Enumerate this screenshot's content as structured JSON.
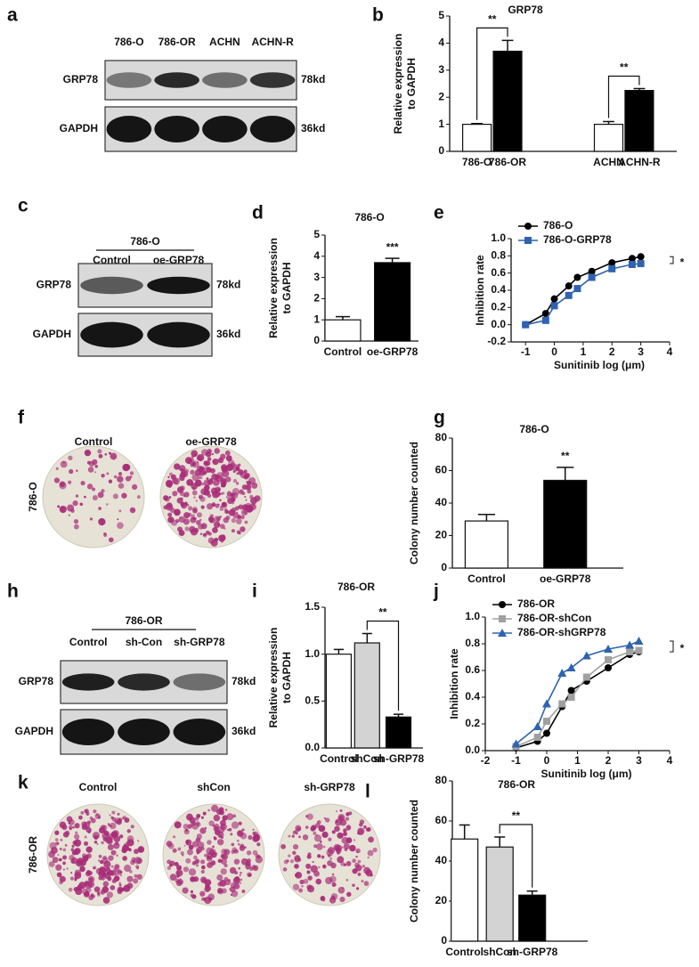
{
  "letters": [
    "a",
    "b",
    "c",
    "d",
    "e",
    "f",
    "g",
    "h",
    "i",
    "j",
    "k",
    "l"
  ],
  "blot_a": {
    "lanes": [
      "786-O",
      "786-OR",
      "ACHN",
      "ACHN-R"
    ],
    "rows": [
      {
        "protein": "GRP78",
        "size": "78kd"
      },
      {
        "protein": "GAPDH",
        "size": "36kd"
      }
    ]
  },
  "blot_c": {
    "header": "786-O",
    "lanes": [
      "Control",
      "oe-GRP78"
    ],
    "rows": [
      {
        "protein": "GRP78",
        "size": "78kd"
      },
      {
        "protein": "GAPDH",
        "size": "36kd"
      }
    ]
  },
  "blot_h": {
    "header": "786-OR",
    "lanes": [
      "Control",
      "sh-Con",
      "sh-GRP78"
    ],
    "rows": [
      {
        "protein": "GRP78",
        "size": "78kd"
      },
      {
        "protein": "GAPDH",
        "size": "36kd"
      }
    ]
  },
  "colony_f": {
    "cell_line": "786-O",
    "conditions": [
      "Control",
      "oe-GRP78"
    ]
  },
  "colony_k": {
    "cell_line": "786-OR",
    "conditions": [
      "Control",
      "shCon",
      "sh-GRP78"
    ]
  },
  "chart_data": [
    {
      "type": "bar",
      "title": "GRP78",
      "ylabel": [
        "Relative expression",
        "to GAPDH"
      ],
      "categories": [
        "786-O",
        "786-OR",
        "ACHN",
        "ACHN-R"
      ],
      "values": [
        1.0,
        3.7,
        1.0,
        2.25
      ],
      "errors": [
        0.03,
        0.4,
        0.1,
        0.07
      ],
      "colors": [
        "#ffffff",
        "#000000",
        "#ffffff",
        "#000000"
      ],
      "ylim": [
        0,
        5
      ],
      "yticks": [
        0,
        1,
        2,
        3,
        4,
        5
      ],
      "annotations": [
        {
          "text": "**",
          "from": 0,
          "to": 1
        },
        {
          "text": "**",
          "from": 2,
          "to": 3
        }
      ]
    },
    {
      "type": "bar",
      "title": "786-O",
      "ylabel": [
        "Relative expression",
        "to GAPDH"
      ],
      "categories": [
        "Control",
        "oe-GRP78"
      ],
      "values": [
        1.0,
        3.7
      ],
      "errors": [
        0.15,
        0.2
      ],
      "colors": [
        "#ffffff",
        "#000000"
      ],
      "ylim": [
        0,
        5
      ],
      "yticks": [
        0,
        1,
        2,
        3,
        4,
        5
      ],
      "annotations": [
        {
          "text": "***",
          "at": 1
        }
      ]
    },
    {
      "type": "line",
      "xlabel": "Sunitinib log (μm)",
      "ylabel": "Inhibition rate",
      "x": [
        -1,
        -0.3,
        0,
        0.5,
        0.8,
        1.3,
        2,
        2.7,
        3
      ],
      "series": [
        {
          "name": "786-O",
          "color": "#000000",
          "marker": "circle",
          "values": [
            0.0,
            0.13,
            0.3,
            0.45,
            0.55,
            0.62,
            0.72,
            0.77,
            0.79
          ]
        },
        {
          "name": "786-O-GRP78",
          "color": "#2f63b0",
          "marker": "square",
          "values": [
            0.0,
            0.05,
            0.22,
            0.34,
            0.42,
            0.55,
            0.65,
            0.7,
            0.71
          ]
        }
      ],
      "xlim": [
        -1.5,
        4
      ],
      "xticks": [
        -1,
        0,
        1,
        2,
        3,
        4
      ],
      "ylim": [
        -0.2,
        1.0
      ],
      "yticks": [
        -0.2,
        {
          "value": 0,
          "label": "0.0"
        },
        0.2,
        0.4,
        0.6,
        0.8,
        {
          "value": 1,
          "label": "1.0"
        }
      ],
      "annotation": "*"
    },
    {
      "type": "bar",
      "title": "786-O",
      "ylabel": "Colony number counted",
      "categories": [
        "Control",
        "oe-GRP78"
      ],
      "values": [
        29,
        54
      ],
      "errors": [
        4,
        8
      ],
      "colors": [
        "#ffffff",
        "#000000"
      ],
      "ylim": [
        0,
        80
      ],
      "yticks": [
        0,
        20,
        40,
        60,
        80
      ],
      "annotations": [
        {
          "text": "**",
          "at": 1
        }
      ]
    },
    {
      "type": "bar",
      "title": "786-OR",
      "ylabel": [
        "Relative expression",
        "to GAPDH"
      ],
      "categories": [
        "Control",
        "shCon",
        "sh-GRP78"
      ],
      "values": [
        1.0,
        1.12,
        0.33
      ],
      "errors": [
        0.05,
        0.1,
        0.03
      ],
      "colors": [
        "#ffffff",
        "#d3d3d3",
        "#000000"
      ],
      "ylim": [
        0,
        1.5
      ],
      "yticks": [
        {
          "value": 0,
          "label": "0.0"
        },
        0.5,
        {
          "value": 1,
          "label": "1.0"
        },
        1.5
      ],
      "annotations": [
        {
          "text": "**",
          "from": 1,
          "to": 2
        }
      ]
    },
    {
      "type": "line",
      "xlabel": "Sunitinib log (μm)",
      "ylabel": "Inhibition rate",
      "x": [
        -1,
        -0.3,
        0,
        0.5,
        0.8,
        1.3,
        2,
        2.7,
        3
      ],
      "series": [
        {
          "name": "786-OR",
          "color": "#000000",
          "marker": "circle",
          "values": [
            0.02,
            0.07,
            0.13,
            0.33,
            0.45,
            0.52,
            0.62,
            0.72,
            0.74
          ]
        },
        {
          "name": "786-OR-shCon",
          "color": "#a0a0a0",
          "marker": "square",
          "values": [
            0.03,
            0.1,
            0.22,
            0.35,
            0.4,
            0.55,
            0.68,
            0.74,
            0.75
          ]
        },
        {
          "name": "786-OR-shGRP78",
          "color": "#2f63b0",
          "marker": "triangle",
          "values": [
            0.05,
            0.18,
            0.35,
            0.58,
            0.62,
            0.71,
            0.76,
            0.79,
            0.82
          ]
        }
      ],
      "xlim": [
        -2,
        4
      ],
      "xticks": [
        -2,
        -1,
        0,
        1,
        2,
        3,
        4
      ],
      "ylim": [
        0,
        1.0
      ],
      "yticks": [
        {
          "value": 0,
          "label": "0.0"
        },
        0.2,
        0.4,
        0.6,
        0.8,
        {
          "value": 1,
          "label": "1.0"
        }
      ],
      "annotation": "*"
    },
    {
      "type": "bar",
      "title": "786-OR",
      "ylabel": "Colony number counted",
      "categories": [
        "Control",
        "shCon",
        "sh-GRP78"
      ],
      "values": [
        51,
        47,
        23
      ],
      "errors": [
        7,
        5,
        2
      ],
      "colors": [
        "#ffffff",
        "#d3d3d3",
        "#000000"
      ],
      "ylim": [
        0,
        80
      ],
      "yticks": [
        0,
        20,
        40,
        60,
        80
      ],
      "annotations": [
        {
          "text": "**",
          "from": 1,
          "to": 2
        }
      ]
    }
  ]
}
